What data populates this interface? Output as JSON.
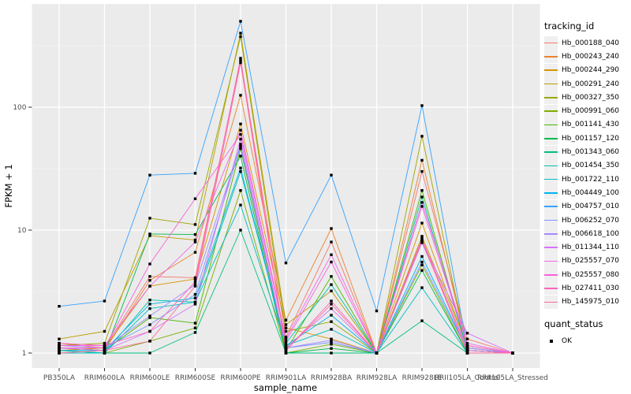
{
  "style": {
    "panel_bg": "#EBEBEB",
    "grid_major": "#FFFFFF",
    "grid_minor": "#F4F4F4",
    "tick_color": "#333333",
    "axis_text_color": "#4D4D4D",
    "axis_title_color": "#000000",
    "legend_key_bg": "#EFEFEF",
    "point_color": "#000000"
  },
  "chart_data": {
    "type": "line",
    "title": "",
    "xlabel": "sample_name",
    "ylabel": "FPKM + 1",
    "y_scale": "log10",
    "y_ticks": [
      1,
      10,
      100
    ],
    "ylim": [
      0.82,
      560
    ],
    "grid": true,
    "legend_position": "right",
    "legend_title": "tracking_id",
    "legend2_title": "quant_status",
    "legend2_items": [
      "OK"
    ],
    "point_shape": "square",
    "x_categories": [
      "PB350LA",
      "RRIM600LA",
      "RRIM600LE",
      "RRIM600SE",
      "RRIM600PE",
      "RRIM901LA",
      "RRIM928BA",
      "RRIM928LA",
      "RRIM928LE",
      "RRII105LA_Control",
      "RRII105LA_Stressed"
    ],
    "series": [
      {
        "name": "Hb_000188_040",
        "color": "#F8766D",
        "values": [
          1.2,
          1.1,
          4.2,
          4.1,
          240,
          1.35,
          8.0,
          1.0,
          30,
          1.3,
          1.0
        ]
      },
      {
        "name": "Hb_000243_240",
        "color": "#EA8331",
        "values": [
          1.1,
          1.05,
          3.9,
          6.6,
          125,
          1.85,
          10.3,
          1.0,
          37,
          1.1,
          1.0
        ]
      },
      {
        "name": "Hb_000244_290",
        "color": "#D89200",
        "values": [
          1.05,
          1.1,
          3.5,
          4.0,
          73,
          1.6,
          1.3,
          1.0,
          11.4,
          1.1,
          1.0
        ]
      },
      {
        "name": "Hb_000291_240",
        "color": "#BC9D00",
        "values": [
          1.3,
          1.5,
          9.0,
          8.3,
          400,
          1.7,
          3.2,
          1.0,
          8.9,
          1.15,
          1.0
        ]
      },
      {
        "name": "Hb_000327_350",
        "color": "#9CA700",
        "values": [
          1.15,
          1.2,
          12.5,
          11.1,
          375,
          1.5,
          1.8,
          1.0,
          58,
          1.05,
          1.0
        ]
      },
      {
        "name": "Hb_000991_060",
        "color": "#7CAE00",
        "values": [
          1.0,
          1.0,
          1.25,
          1.6,
          21,
          1.0,
          1.18,
          1.0,
          5.2,
          1.0,
          1.0
        ]
      },
      {
        "name": "Hb_001141_430",
        "color": "#49B500",
        "values": [
          1.1,
          1.05,
          1.94,
          1.75,
          46,
          1.05,
          4.2,
          1.0,
          21,
          1.05,
          1.0
        ]
      },
      {
        "name": "Hb_001157_120",
        "color": "#00BB4E",
        "values": [
          1.05,
          1.0,
          9.3,
          9.2,
          40,
          1.0,
          1.09,
          1.0,
          4.7,
          1.0,
          1.0
        ]
      },
      {
        "name": "Hb_001343_060",
        "color": "#00C07D",
        "values": [
          1.0,
          1.0,
          1.0,
          1.47,
          10,
          1.0,
          1.0,
          1.0,
          1.83,
          1.0,
          1.0
        ]
      },
      {
        "name": "Hb_001454_350",
        "color": "#00C1A9",
        "values": [
          1.05,
          1.0,
          2.7,
          2.6,
          30,
          1.2,
          3.6,
          1.0,
          18.6,
          1.05,
          1.0
        ]
      },
      {
        "name": "Hb_001722_110",
        "color": "#00BFC4",
        "values": [
          1.0,
          1.0,
          2.3,
          2.6,
          16,
          1.15,
          1.56,
          1.0,
          3.4,
          1.0,
          1.0
        ]
      },
      {
        "name": "Hb_004449_100",
        "color": "#00B4EF",
        "values": [
          1.05,
          1.05,
          2.5,
          2.8,
          32,
          1.15,
          2.03,
          1.0,
          6.1,
          1.05,
          1.0
        ]
      },
      {
        "name": "Hb_004757_010",
        "color": "#35A2FF",
        "values": [
          2.4,
          2.65,
          28,
          29,
          500,
          5.4,
          28,
          2.2,
          103,
          1.1,
          1.0
        ]
      },
      {
        "name": "Hb_006252_070",
        "color": "#7997FF",
        "values": [
          1.1,
          1.1,
          1.7,
          3.0,
          48,
          1.1,
          1.22,
          1.0,
          5.5,
          1.05,
          1.0
        ]
      },
      {
        "name": "Hb_006618_100",
        "color": "#A58AFF",
        "values": [
          1.15,
          1.1,
          2.0,
          3.6,
          50,
          1.1,
          1.27,
          1.0,
          7.9,
          1.1,
          1.0
        ]
      },
      {
        "name": "Hb_011344_110",
        "color": "#D873FC",
        "values": [
          1.1,
          1.05,
          1.5,
          2.5,
          55,
          1.1,
          2.3,
          1.0,
          8.0,
          1.45,
          1.0
        ]
      },
      {
        "name": "Hb_025557_070",
        "color": "#EF67EA",
        "values": [
          1.15,
          1.15,
          3.5,
          8.0,
          65,
          1.3,
          6.3,
          1.0,
          16.8,
          1.2,
          1.0
        ]
      },
      {
        "name": "Hb_025557_080",
        "color": "#FA62DB",
        "values": [
          1.1,
          1.1,
          5.3,
          18,
          60,
          1.25,
          5.5,
          1.0,
          15.6,
          1.15,
          1.0
        ]
      },
      {
        "name": "Hb_027411_030",
        "color": "#FF62BC",
        "values": [
          1.2,
          1.15,
          1.5,
          3.8,
          250,
          1.05,
          2.65,
          1.0,
          8.5,
          1.05,
          1.0
        ]
      },
      {
        "name": "Hb_145975_010",
        "color": "#FF6A9A",
        "values": [
          1.0,
          1.05,
          1.25,
          3.5,
          230,
          1.05,
          2.5,
          1.0,
          8.2,
          1.0,
          1.0
        ]
      }
    ]
  }
}
